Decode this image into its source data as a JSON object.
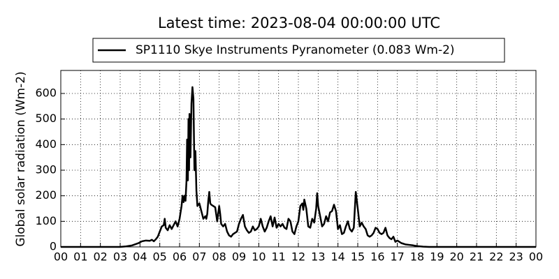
{
  "chart_data": {
    "type": "line",
    "title": "Latest time: 2023-08-04 00:00:00 UTC",
    "y_label": "Global solar radiation (Wm-2)",
    "x": [
      0,
      3.0,
      3.3,
      3.6,
      3.9,
      4.1,
      4.3,
      4.5,
      4.6,
      4.7,
      4.8,
      4.9,
      5.0,
      5.1,
      5.2,
      5.25,
      5.3,
      5.4,
      5.5,
      5.6,
      5.7,
      5.8,
      5.9,
      6.0,
      6.1,
      6.15,
      6.2,
      6.25,
      6.3,
      6.35,
      6.38,
      6.42,
      6.45,
      6.48,
      6.5,
      6.55,
      6.6,
      6.65,
      6.7,
      6.75,
      6.8,
      6.85,
      6.9,
      7.0,
      7.1,
      7.2,
      7.3,
      7.35,
      7.4,
      7.45,
      7.5,
      7.55,
      7.6,
      7.7,
      7.8,
      7.9,
      8.0,
      8.05,
      8.1,
      8.2,
      8.3,
      8.4,
      8.5,
      8.6,
      8.7,
      8.8,
      8.9,
      9.0,
      9.1,
      9.2,
      9.3,
      9.4,
      9.5,
      9.6,
      9.7,
      9.8,
      9.9,
      10.0,
      10.1,
      10.2,
      10.3,
      10.4,
      10.5,
      10.6,
      10.7,
      10.8,
      10.9,
      11.0,
      11.1,
      11.2,
      11.3,
      11.4,
      11.5,
      11.6,
      11.7,
      11.8,
      11.9,
      12.0,
      12.1,
      12.2,
      12.25,
      12.3,
      12.4,
      12.5,
      12.6,
      12.7,
      12.8,
      12.9,
      12.95,
      13.0,
      13.1,
      13.2,
      13.3,
      13.4,
      13.5,
      13.6,
      13.7,
      13.8,
      13.9,
      14.0,
      14.1,
      14.2,
      14.3,
      14.4,
      14.5,
      14.6,
      14.7,
      14.8,
      14.9,
      15.0,
      15.1,
      15.2,
      15.3,
      15.4,
      15.5,
      15.6,
      15.7,
      15.8,
      15.9,
      16.0,
      16.1,
      16.2,
      16.3,
      16.4,
      16.5,
      16.6,
      16.7,
      16.8,
      16.9,
      17.0,
      17.2,
      17.4,
      17.6,
      17.8,
      18.0,
      18.3,
      18.6,
      24
    ],
    "series": [
      {
        "name": "SP1110 Skye Instruments Pyranometer (0.083 Wm-2)",
        "color": "#000000",
        "values": [
          0,
          0,
          2,
          6,
          14,
          22,
          25,
          24,
          28,
          22,
          30,
          40,
          60,
          80,
          85,
          110,
          75,
          65,
          85,
          70,
          85,
          100,
          80,
          110,
          160,
          200,
          175,
          200,
          180,
          260,
          420,
          260,
          500,
          300,
          520,
          350,
          560,
          625,
          580,
          300,
          375,
          220,
          160,
          170,
          140,
          110,
          120,
          110,
          130,
          180,
          215,
          170,
          165,
          160,
          155,
          100,
          160,
          130,
          90,
          80,
          90,
          60,
          45,
          40,
          50,
          55,
          60,
          90,
          110,
          125,
          80,
          65,
          55,
          60,
          80,
          65,
          70,
          80,
          110,
          80,
          60,
          75,
          100,
          120,
          80,
          115,
          75,
          90,
          80,
          90,
          75,
          70,
          110,
          100,
          60,
          50,
          80,
          100,
          160,
          170,
          145,
          185,
          150,
          80,
          75,
          110,
          95,
          150,
          210,
          160,
          120,
          80,
          90,
          120,
          100,
          135,
          140,
          165,
          140,
          70,
          85,
          50,
          55,
          80,
          100,
          70,
          60,
          75,
          215,
          150,
          80,
          95,
          80,
          70,
          45,
          40,
          45,
          55,
          75,
          70,
          55,
          50,
          55,
          75,
          45,
          35,
          30,
          40,
          20,
          25,
          15,
          10,
          8,
          6,
          3,
          1,
          0,
          0
        ]
      }
    ],
    "xlim": [
      0,
      24
    ],
    "xticks": [
      {
        "value": 0,
        "label": "00"
      },
      {
        "value": 1,
        "label": "01"
      },
      {
        "value": 2,
        "label": "02"
      },
      {
        "value": 3,
        "label": "03"
      },
      {
        "value": 4,
        "label": "04"
      },
      {
        "value": 5,
        "label": "05"
      },
      {
        "value": 6,
        "label": "06"
      },
      {
        "value": 7,
        "label": "07"
      },
      {
        "value": 8,
        "label": "08"
      },
      {
        "value": 9,
        "label": "09"
      },
      {
        "value": 10,
        "label": "10"
      },
      {
        "value": 11,
        "label": "11"
      },
      {
        "value": 12,
        "label": "12"
      },
      {
        "value": 13,
        "label": "13"
      },
      {
        "value": 14,
        "label": "14"
      },
      {
        "value": 15,
        "label": "15"
      },
      {
        "value": 16,
        "label": "16"
      },
      {
        "value": 17,
        "label": "17"
      },
      {
        "value": 18,
        "label": "18"
      },
      {
        "value": 19,
        "label": "19"
      },
      {
        "value": 20,
        "label": "20"
      },
      {
        "value": 21,
        "label": "21"
      },
      {
        "value": 22,
        "label": "22"
      },
      {
        "value": 23,
        "label": "23"
      },
      {
        "value": 24,
        "label": "00"
      }
    ],
    "ylim": [
      0,
      690
    ],
    "yticks": [
      0,
      100,
      200,
      300,
      400,
      500,
      600
    ],
    "grid": true
  }
}
